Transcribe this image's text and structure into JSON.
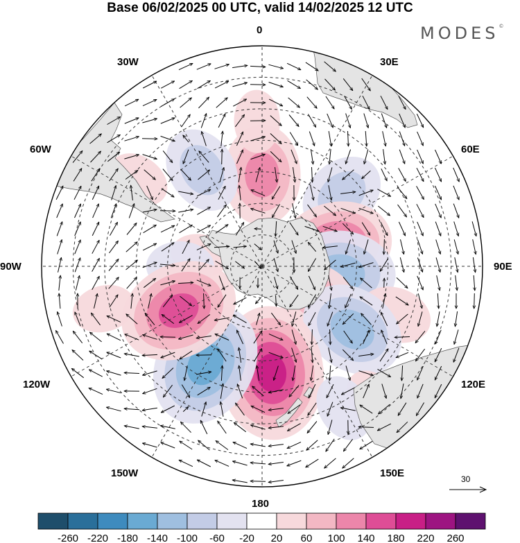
{
  "title": "Base 06/02/2025 00 UTC, valid 14/02/2025 12 UTC",
  "brand": "MODES",
  "brand_mark": "©",
  "longitude_labels": {
    "top": "0",
    "tr": "30E",
    "rt": "60E",
    "right": "90E",
    "rb": "120E",
    "br": "150E",
    "bottom": "180",
    "bl": "150W",
    "lb": "120W",
    "left": "90W",
    "lt": "60W",
    "tl": "30W"
  },
  "reference_vector": "30",
  "colorbar": {
    "tick_labels": [
      "-260",
      "-220",
      "-180",
      "-140",
      "-100",
      "-60",
      "-20",
      "20",
      "60",
      "100",
      "140",
      "180",
      "220",
      "260"
    ],
    "colors": [
      "#1e4e6b",
      "#2a6f9a",
      "#3e8bbe",
      "#6aaad3",
      "#9fbfe0",
      "#c3cce6",
      "#e3e2f0",
      "#ffffff",
      "#f7d9dc",
      "#f3b8c4",
      "#ec86aa",
      "#de4d96",
      "#c81f86",
      "#9d1481",
      "#5e116f"
    ]
  },
  "colors": {
    "land": "#e4e4e4",
    "coast": "#555555",
    "grid": "#333333"
  },
  "map_features": {
    "anomalies": [
      {
        "lon": 0,
        "colat": 29,
        "value": 120
      },
      {
        "lon": -2,
        "colat": 46,
        "value": 40
      },
      {
        "lon": -32,
        "colat": 36,
        "value": -90
      },
      {
        "lon": -55,
        "colat": 48,
        "value": 40
      },
      {
        "lon": -80,
        "colat": 20,
        "value": 30
      },
      {
        "lon": -90,
        "colat": 26,
        "value": -50
      },
      {
        "lon": 48,
        "colat": 34,
        "value": -90
      },
      {
        "lon": 75,
        "colat": 24,
        "value": 150
      },
      {
        "lon": 95,
        "colat": 25,
        "value": -140
      },
      {
        "lon": 110,
        "colat": 45,
        "value": 60
      },
      {
        "lon": 120,
        "colat": 20,
        "value": 90
      },
      {
        "lon": 125,
        "colat": 35,
        "value": -130
      },
      {
        "lon": 140,
        "colat": 55,
        "value": 40
      },
      {
        "lon": 175,
        "colat": 34,
        "value": 190
      },
      {
        "lon": -150,
        "colat": 36,
        "value": -170
      },
      {
        "lon": -118,
        "colat": 30,
        "value": 160
      },
      {
        "lon": -105,
        "colat": 52,
        "value": 40
      },
      {
        "lon": 150,
        "colat": 52,
        "value": -50
      }
    ]
  }
}
